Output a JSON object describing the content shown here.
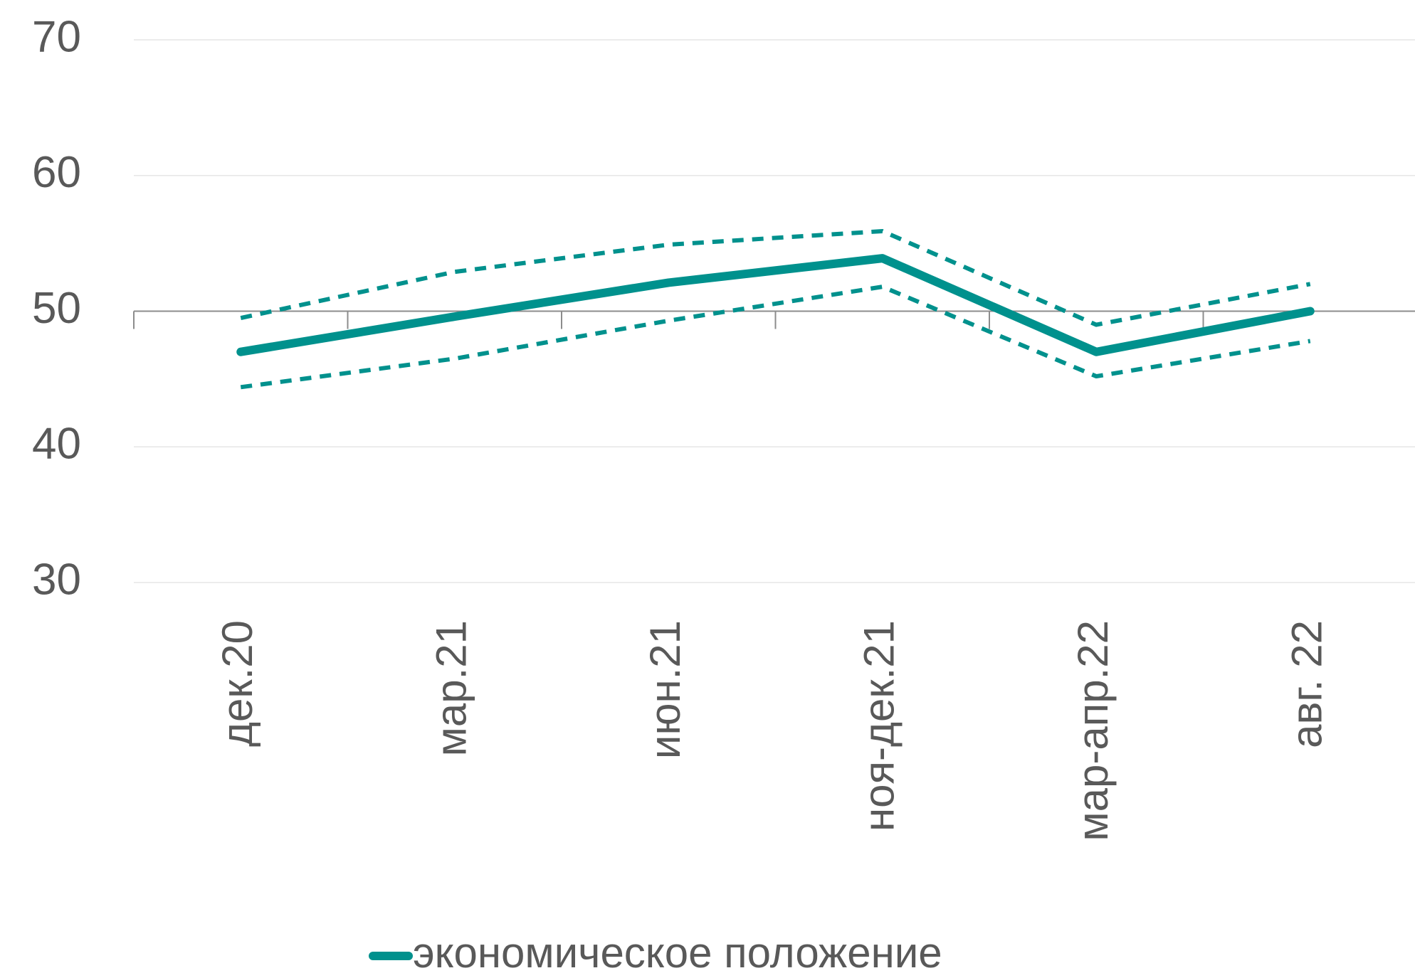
{
  "chart_data": {
    "type": "line",
    "categories": [
      "дек.20",
      "мар.21",
      "июн.21",
      "ноя-дек.21",
      "мар-апр.22",
      "авг. 22"
    ],
    "series": [
      {
        "name": "экономическое положение",
        "color": "#00918d",
        "dashed": false,
        "values": [
          47,
          49.6,
          52.1,
          53.9,
          47,
          50
        ]
      },
      {
        "color": "#00918d",
        "dashed": true,
        "values": [
          49.5,
          52.9,
          54.9,
          55.9,
          49,
          52
        ]
      },
      {
        "color": "#00918d",
        "dashed": true,
        "values": [
          44.4,
          46.5,
          49.3,
          51.8,
          45.2,
          47.8
        ]
      }
    ],
    "ylim": [
      30,
      70
    ],
    "yticks": [
      30,
      40,
      50,
      60,
      70
    ],
    "grid": true,
    "x_axis_crosses": 50,
    "legend": "bottom"
  }
}
